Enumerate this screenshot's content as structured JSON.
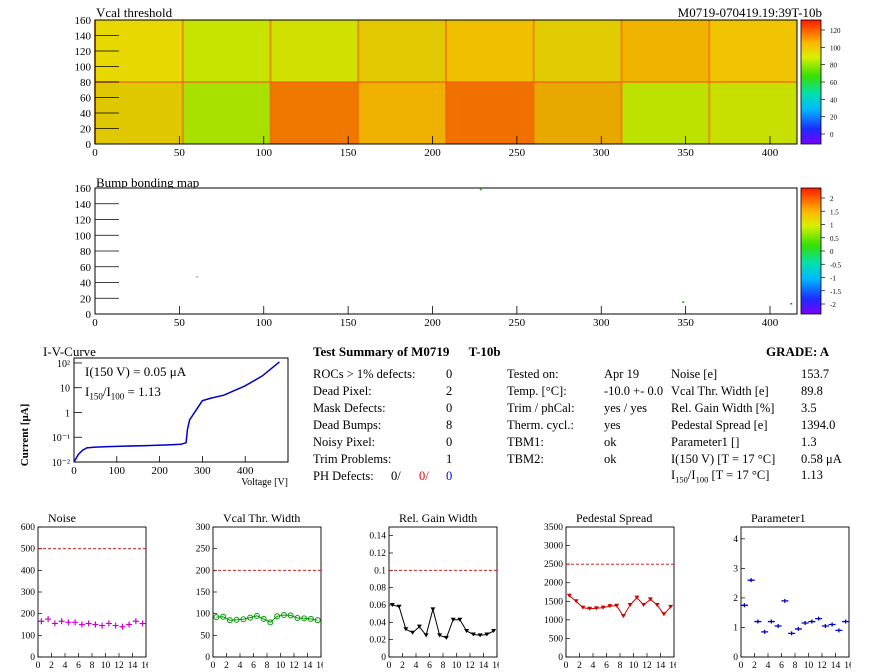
{
  "header": {
    "left_title": "Vcal threshold",
    "right_title": "M0719-070419.19:39T-10b"
  },
  "map1": {
    "title": "Vcal threshold",
    "xticks": [
      "0",
      "50",
      "100",
      "150",
      "200",
      "250",
      "300",
      "350",
      "400"
    ],
    "yticks": [
      "0",
      "20",
      "40",
      "60",
      "80",
      "100",
      "120",
      "140",
      "160"
    ],
    "palette_ticks": [
      "120",
      "100",
      "80",
      "60",
      "40",
      "20",
      "0"
    ]
  },
  "map2": {
    "title": "Bump bonding map",
    "xticks": [
      "0",
      "50",
      "100",
      "150",
      "200",
      "250",
      "300",
      "350",
      "400"
    ],
    "yticks": [
      "0",
      "20",
      "40",
      "60",
      "80",
      "100",
      "120",
      "140",
      "160"
    ],
    "palette_ticks": [
      "2",
      "1.5",
      "1",
      "0.5",
      "0",
      "-0.5",
      "-1",
      "-1.5",
      "-2"
    ]
  },
  "iv": {
    "title": "I-V-Curve",
    "ylabel": "Current [μA]",
    "xlabel": "Voltage [V]",
    "xticks": [
      "0",
      "100",
      "200",
      "300",
      "400"
    ],
    "yticks": [
      "10²",
      "10",
      "1",
      "10⁻¹",
      "10⁻²"
    ],
    "annot1": "I(150 V) = 0.05 μA",
    "annot2_main": "I",
    "annot2_sub1": "150",
    "annot2_mid": "/I",
    "annot2_sub2": "100",
    "annot2_val": "=  1.13"
  },
  "summary": {
    "title": "Test Summary of M0719",
    "tag": "T-10b",
    "grade_label": "GRADE:  A",
    "rows": [
      {
        "label": "ROCs > 1% defects:",
        "value": "0"
      },
      {
        "label": "Dead Pixel:",
        "value": "2"
      },
      {
        "label": "Mask Defects:",
        "value": "0"
      },
      {
        "label": "Dead Bumps:",
        "value": "8"
      },
      {
        "label": "Noisy Pixel:",
        "value": "0"
      },
      {
        "label": "Trim Problems:",
        "value": "1"
      }
    ],
    "ph_label": "PH Defects:",
    "ph_black": "0/",
    "ph_red": "0/",
    "ph_blue": "0",
    "mid": [
      {
        "label": "Tested on:",
        "value": "Apr 19"
      },
      {
        "label": "Temp. [°C]:",
        "value": "-10.0 +- 0.0"
      },
      {
        "label": "Trim / phCal:",
        "value": "yes / yes"
      },
      {
        "label": "Therm. cycl.:",
        "value": "yes"
      },
      {
        "label": "TBM1:",
        "value": "ok"
      },
      {
        "label": "TBM2:",
        "value": "ok"
      }
    ],
    "right": [
      {
        "label": "Noise [e]",
        "value": "153.7"
      },
      {
        "label": "Vcal Thr. Width [e]",
        "value": "89.8"
      },
      {
        "label": "Rel. Gain Width [%]",
        "value": "3.5"
      },
      {
        "label": "Pedestal Spread [e]",
        "value": "1394.0"
      },
      {
        "label": "Parameter1 []",
        "value": "1.3"
      },
      {
        "label": "I(150 V) [T = 17 °C]",
        "value": "0.58 μA"
      }
    ],
    "last_main": "I",
    "last_sub1": "150",
    "last_mid": "/I",
    "last_sub2": "100",
    "last_tail": "  [T = 17 °C]",
    "last_value": "1.13"
  },
  "chart_data": [
    {
      "type": "scatter",
      "title": "Noise",
      "color": "#cc00cc",
      "marker": "plus",
      "x": [
        0,
        1,
        2,
        3,
        4,
        5,
        6,
        7,
        8,
        9,
        10,
        11,
        12,
        13,
        14,
        15
      ],
      "y": [
        165,
        175,
        155,
        165,
        160,
        160,
        150,
        155,
        150,
        145,
        155,
        145,
        140,
        150,
        165,
        155
      ],
      "ylim": [
        0,
        600
      ],
      "yticks": [
        0,
        100,
        200,
        300,
        400,
        500,
        600
      ],
      "xticks": [
        0,
        2,
        4,
        6,
        8,
        10,
        12,
        14,
        16
      ],
      "ref": 500
    },
    {
      "type": "line",
      "title": "Vcal Thr. Width",
      "color": "#009900",
      "marker": "circle",
      "x": [
        0,
        1,
        2,
        3,
        4,
        5,
        6,
        7,
        8,
        9,
        10,
        11,
        12,
        13,
        14,
        15
      ],
      "y": [
        92,
        93,
        85,
        86,
        87,
        91,
        95,
        88,
        80,
        94,
        97,
        96,
        90,
        89,
        88,
        85
      ],
      "ylim": [
        0,
        300
      ],
      "yticks": [
        0,
        50,
        100,
        150,
        200,
        250,
        300
      ],
      "xticks": [
        0,
        2,
        4,
        6,
        8,
        10,
        12,
        14,
        16
      ],
      "ref": 200
    },
    {
      "type": "line",
      "title": "Rel. Gain Width",
      "color": "#000000",
      "marker": "tri",
      "x": [
        0,
        1,
        2,
        3,
        4,
        5,
        6,
        7,
        8,
        9,
        10,
        11,
        12,
        13,
        14,
        15
      ],
      "y": [
        0.06,
        0.058,
        0.032,
        0.028,
        0.035,
        0.025,
        0.055,
        0.025,
        0.022,
        0.043,
        0.043,
        0.03,
        0.026,
        0.025,
        0.026,
        0.03
      ],
      "ylim": [
        0,
        0.15
      ],
      "yticks": [
        0,
        0.02,
        0.04,
        0.06,
        0.08,
        0.1,
        0.12,
        0.14
      ],
      "xticks": [
        0,
        2,
        4,
        6,
        8,
        10,
        12,
        14,
        16
      ],
      "ref": 0.1
    },
    {
      "type": "line",
      "title": "Pedestal Spread",
      "color": "#cc0000",
      "marker": "tri",
      "x": [
        0,
        1,
        2,
        3,
        4,
        5,
        6,
        7,
        8,
        9,
        10,
        11,
        12,
        13,
        14,
        15
      ],
      "y": [
        1650,
        1500,
        1330,
        1300,
        1310,
        1330,
        1370,
        1380,
        1100,
        1400,
        1600,
        1400,
        1550,
        1400,
        1150,
        1350
      ],
      "ylim": [
        0,
        3500
      ],
      "yticks": [
        0,
        500,
        1000,
        1500,
        2000,
        2500,
        3000,
        3500
      ],
      "xticks": [
        0,
        2,
        4,
        6,
        8,
        10,
        12,
        14,
        16
      ],
      "ref": 2500
    },
    {
      "type": "scatter",
      "title": "Parameter1",
      "color": "#0000cc",
      "marker": "hbar",
      "x": [
        0,
        1,
        2,
        3,
        4,
        5,
        6,
        7,
        8,
        9,
        10,
        11,
        12,
        13,
        14,
        15
      ],
      "y": [
        1.75,
        2.6,
        1.2,
        0.85,
        1.2,
        1.05,
        1.9,
        0.8,
        0.95,
        1.15,
        1.2,
        1.3,
        1.05,
        1.1,
        0.9,
        1.2
      ],
      "ylim": [
        0,
        4.4
      ],
      "yticks": [
        0,
        1,
        2,
        3,
        4
      ],
      "xticks": [
        0,
        2,
        4,
        6,
        8,
        10,
        12,
        14,
        16
      ],
      "ref": null
    }
  ],
  "iv_data": {
    "voltage": [
      0,
      10,
      20,
      30,
      50,
      80,
      120,
      170,
      220,
      250,
      262,
      265,
      270,
      280,
      300,
      320,
      350,
      400,
      440,
      480
    ],
    "current": [
      0.01,
      0.02,
      0.03,
      0.037,
      0.04,
      0.042,
      0.044,
      0.046,
      0.049,
      0.052,
      0.06,
      0.2,
      0.5,
      0.9,
      3,
      3.8,
      5,
      12,
      30,
      110
    ]
  },
  "colors": {
    "frame": "#000000",
    "ref_line": "#cc0000"
  }
}
